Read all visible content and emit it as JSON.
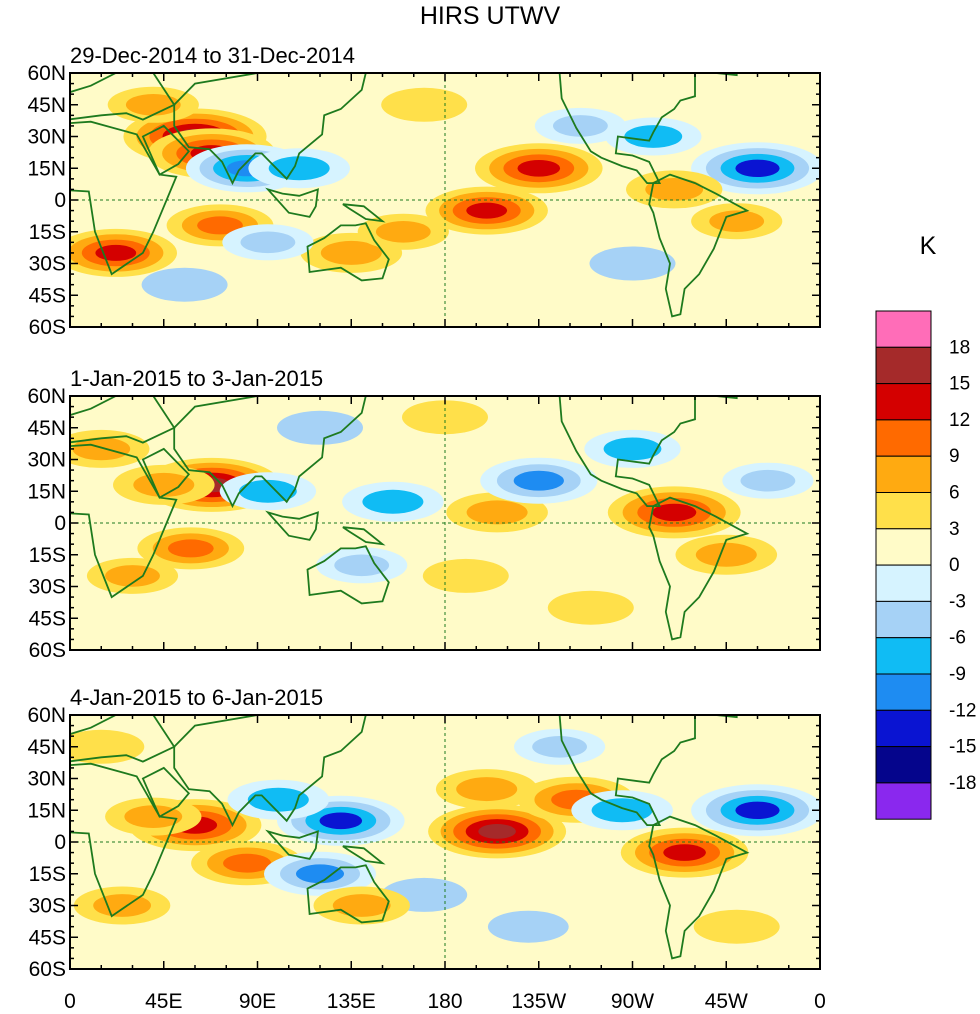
{
  "chart_data": {
    "type": "heatmap",
    "title": "HIRS UTWV",
    "colorbar": {
      "unit": "K",
      "levels": [
        18,
        15,
        12,
        9,
        6,
        3,
        0,
        -3,
        -6,
        -9,
        -12,
        -15,
        -18
      ],
      "colors": [
        "#ff6db8",
        "#a52a2a",
        "#d40000",
        "#ff6a00",
        "#ffaa11",
        "#ffe04a",
        "#fffbc8",
        "#d6f3ff",
        "#a6d2f6",
        "#10bcf4",
        "#1e8cf2",
        "#0a14d2",
        "#05058c",
        "#8a28ee"
      ]
    },
    "x_ticks": [
      "0",
      "45E",
      "90E",
      "135E",
      "180",
      "135W",
      "90W",
      "45W",
      "0"
    ],
    "y_ticks": [
      "60N",
      "45N",
      "30N",
      "15N",
      "0",
      "15S",
      "30S",
      "45S",
      "60S"
    ],
    "xlim": [
      0,
      360
    ],
    "ylim": [
      -60,
      60
    ],
    "panels": [
      {
        "label": "29-Dec-2014 to 31-Dec-2014",
        "anomalies": [
          {
            "lon": 60,
            "lat": 30,
            "value": 16
          },
          {
            "lon": 68,
            "lat": 22,
            "value": 13
          },
          {
            "lon": 85,
            "lat": 15,
            "value": -12
          },
          {
            "lon": 22,
            "lat": -25,
            "value": 12
          },
          {
            "lon": 72,
            "lat": -12,
            "value": 9
          },
          {
            "lon": 135,
            "lat": -25,
            "value": 8
          },
          {
            "lon": 200,
            "lat": -5,
            "value": 12
          },
          {
            "lon": 225,
            "lat": 15,
            "value": 13
          },
          {
            "lon": 330,
            "lat": 15,
            "value": -14
          },
          {
            "lon": 245,
            "lat": 35,
            "value": -6
          },
          {
            "lon": 110,
            "lat": 15,
            "value": -8
          },
          {
            "lon": 290,
            "lat": 5,
            "value": 7
          },
          {
            "lon": 40,
            "lat": 45,
            "value": 6
          },
          {
            "lon": 170,
            "lat": 45,
            "value": 5
          },
          {
            "lon": 95,
            "lat": -20,
            "value": -6
          },
          {
            "lon": 270,
            "lat": -30,
            "value": -5
          },
          {
            "lon": 320,
            "lat": -10,
            "value": 6
          },
          {
            "lon": 280,
            "lat": 30,
            "value": -7
          },
          {
            "lon": 160,
            "lat": -15,
            "value": 6
          },
          {
            "lon": 55,
            "lat": -40,
            "value": -5
          }
        ]
      },
      {
        "label": "1-Jan-2015 to 3-Jan-2015",
        "anomalies": [
          {
            "lon": 68,
            "lat": 18,
            "value": 15
          },
          {
            "lon": 45,
            "lat": 18,
            "value": 8
          },
          {
            "lon": 205,
            "lat": 5,
            "value": 8
          },
          {
            "lon": 225,
            "lat": 20,
            "value": -11
          },
          {
            "lon": 155,
            "lat": 10,
            "value": -8
          },
          {
            "lon": 290,
            "lat": 5,
            "value": 14
          },
          {
            "lon": 270,
            "lat": 35,
            "value": -7
          },
          {
            "lon": 95,
            "lat": 15,
            "value": -7
          },
          {
            "lon": 335,
            "lat": 20,
            "value": -6
          },
          {
            "lon": 315,
            "lat": -15,
            "value": 8
          },
          {
            "lon": 58,
            "lat": -12,
            "value": 9
          },
          {
            "lon": 30,
            "lat": -25,
            "value": 6
          },
          {
            "lon": 140,
            "lat": -20,
            "value": -6
          },
          {
            "lon": 190,
            "lat": -25,
            "value": 5
          },
          {
            "lon": 250,
            "lat": -40,
            "value": 5
          },
          {
            "lon": 15,
            "lat": 35,
            "value": 7
          },
          {
            "lon": 120,
            "lat": 45,
            "value": -5
          },
          {
            "lon": 180,
            "lat": 50,
            "value": 5
          }
        ]
      },
      {
        "label": "4-Jan-2015 to 6-Jan-2015",
        "anomalies": [
          {
            "lon": 205,
            "lat": 5,
            "value": 15
          },
          {
            "lon": 200,
            "lat": 25,
            "value": 8
          },
          {
            "lon": 60,
            "lat": 8,
            "value": 14
          },
          {
            "lon": 40,
            "lat": 12,
            "value": 7
          },
          {
            "lon": 85,
            "lat": -10,
            "value": 10
          },
          {
            "lon": 130,
            "lat": 10,
            "value": -13
          },
          {
            "lon": 120,
            "lat": -15,
            "value": -10
          },
          {
            "lon": 243,
            "lat": 20,
            "value": 11
          },
          {
            "lon": 295,
            "lat": -5,
            "value": 13
          },
          {
            "lon": 330,
            "lat": 15,
            "value": -14
          },
          {
            "lon": 265,
            "lat": 15,
            "value": -8
          },
          {
            "lon": 235,
            "lat": 45,
            "value": -6
          },
          {
            "lon": 25,
            "lat": -30,
            "value": 7
          },
          {
            "lon": 170,
            "lat": -25,
            "value": -5
          },
          {
            "lon": 140,
            "lat": -30,
            "value": 7
          },
          {
            "lon": 220,
            "lat": -40,
            "value": -4
          },
          {
            "lon": 320,
            "lat": -40,
            "value": 5
          },
          {
            "lon": 15,
            "lat": 45,
            "value": 5
          },
          {
            "lon": 100,
            "lat": 20,
            "value": -8
          }
        ]
      }
    ]
  }
}
